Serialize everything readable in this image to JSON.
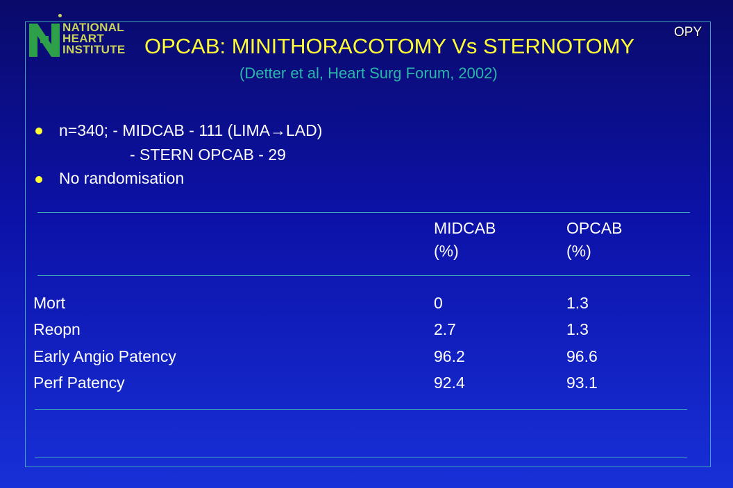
{
  "corner_tag": "OPY",
  "logo": {
    "lines": [
      "NATIONAL",
      "HEART",
      "INSTITUTE"
    ],
    "colors": {
      "mark": "#2ea04a",
      "text": "#c9d25a"
    }
  },
  "title": "OPCAB: MINITHORACOTOMY Vs STERNOTOMY",
  "subtitle": "(Detter et al, Heart Surg Forum, 2002)",
  "bullets": [
    {
      "text": "n=340; - MIDCAB - 111 (LIMA→LAD)"
    },
    {
      "text": "No randomisation"
    }
  ],
  "bullet_continuation": "- STERN OPCAB - 29",
  "table": {
    "headers": [
      {
        "line1": "MIDCAB",
        "line2": "(%)"
      },
      {
        "line1": "OPCAB",
        "line2": "(%)"
      }
    ],
    "rows": [
      {
        "label": "Mort",
        "midcab": "0",
        "opcab": "1.3"
      },
      {
        "label": "Reopn",
        "midcab": "2.7",
        "opcab": "1.3"
      },
      {
        "label": "Early Angio Patency",
        "midcab": "96.2",
        "opcab": "96.6"
      },
      {
        "label": "Perf Patency",
        "midcab": "92.4",
        "opcab": "93.1"
      }
    ]
  },
  "colors": {
    "title": "#ffff33",
    "subtitle": "#2ab7a9",
    "rule": "#3fa6b5",
    "bullet": "#ffff33"
  }
}
